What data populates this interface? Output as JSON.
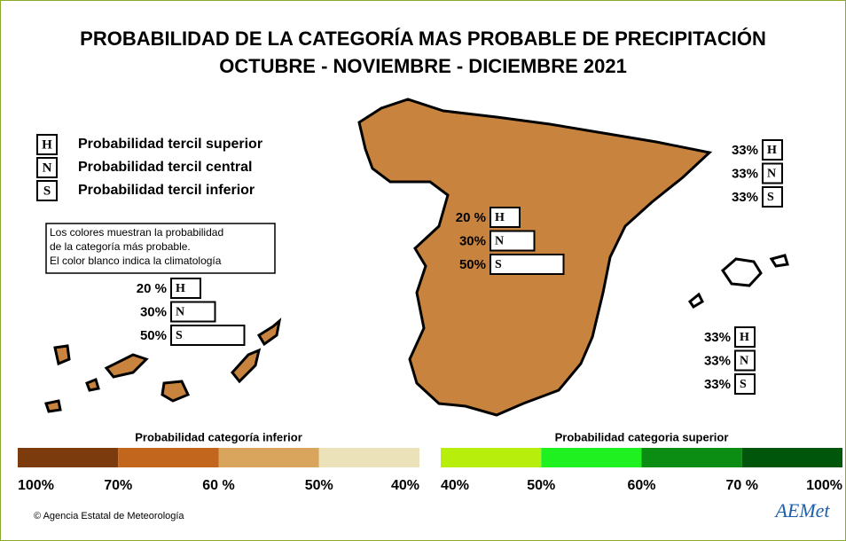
{
  "title": [
    "PROBABILIDAD DE LA CATEGORÍA MAS PROBABLE DE PRECIPITACIÓN",
    "OCTUBRE - NOVIEMBRE - DICIEMBRE 2021"
  ],
  "legend": {
    "letters": [
      "H",
      "N",
      "S"
    ],
    "descriptions": [
      "Probabilidad  tercil superior",
      "Probabilidad  tercil central",
      "Probabilidad  tercil inferior"
    ]
  },
  "note": [
    "Los colores muestran la probabilidad",
    "de la categoría más probable.",
    "El color blanco indica la climatología"
  ],
  "regions": [
    {
      "values": [
        20,
        30,
        50
      ],
      "value_labels": [
        "20 %",
        "30%",
        "50%"
      ],
      "bars": true
    },
    {
      "values": [
        33,
        33,
        33
      ],
      "value_labels": [
        "33%",
        "33%",
        "33%"
      ],
      "bars": false
    },
    {
      "values": [
        20,
        30,
        50
      ],
      "value_labels": [
        "20 %",
        "30%",
        "50%"
      ],
      "bars": true
    },
    {
      "values": [
        33,
        33,
        33
      ],
      "value_labels": [
        "33%",
        "33%",
        "33%"
      ],
      "bars": false
    }
  ],
  "colorbars": [
    {
      "title": "Probabilidad categoría inferior",
      "colors": [
        "#7c3b0c",
        "#c3661d",
        "#d9a45c",
        "#ebe2b9"
      ],
      "ticks": [
        {
          "value": 100,
          "label": "100%"
        },
        {
          "value": 70,
          "label": "70%"
        },
        {
          "value": 60,
          "label": "60 %"
        },
        {
          "value": 50,
          "label": "50%"
        },
        {
          "value": 40,
          "label": "40%"
        }
      ]
    },
    {
      "title": "Probabilidad categoria superior",
      "colors": [
        "#b8ee0c",
        "#1ff01f",
        "#0b8c12",
        "#00560a"
      ],
      "ticks": [
        {
          "value": 40,
          "label": "40%"
        },
        {
          "value": 50,
          "label": "50%"
        },
        {
          "value": 60,
          "label": "60%"
        },
        {
          "value": 70,
          "label": "70 %"
        },
        {
          "value": 100,
          "label": "100%"
        }
      ]
    }
  ],
  "footer": "Agencia Estatal de Meteorología",
  "logo": "AEMet"
}
